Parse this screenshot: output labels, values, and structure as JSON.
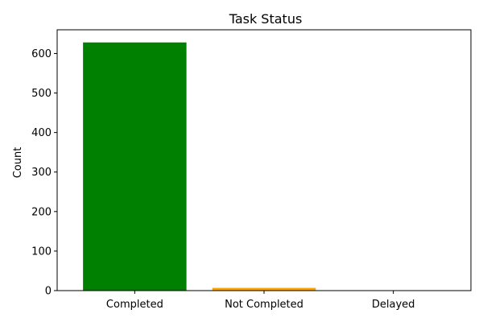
{
  "chart_data": {
    "type": "bar",
    "title": "Task Status",
    "xlabel": "",
    "ylabel": "Count",
    "categories": [
      "Completed",
      "Not Completed",
      "Delayed"
    ],
    "values": [
      628,
      7,
      0
    ],
    "colors": [
      "#008000",
      "#ffa500",
      "#ff0000"
    ],
    "ylim": [
      0,
      660
    ],
    "yticks": [
      0,
      100,
      200,
      300,
      400,
      500,
      600
    ],
    "grid": false,
    "legend": "none"
  }
}
